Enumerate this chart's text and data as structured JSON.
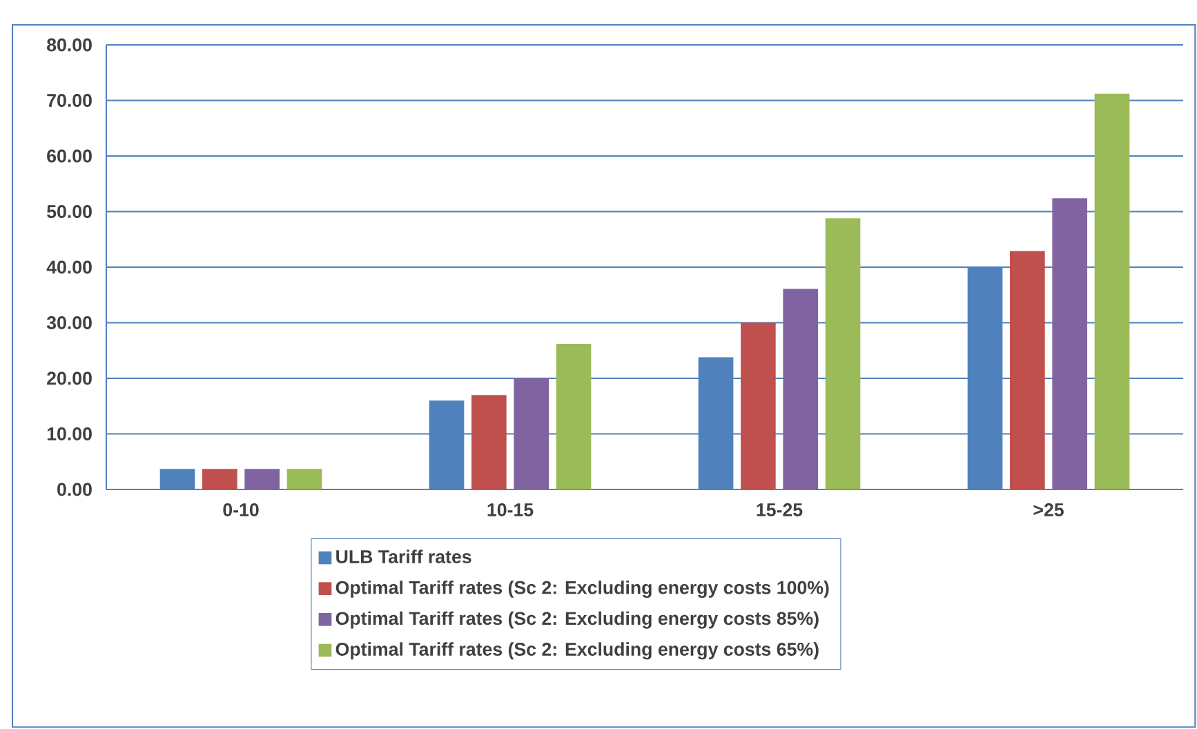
{
  "chart_data": {
    "type": "bar",
    "categories": [
      "0-10",
      "10-15",
      "15-25",
      ">25"
    ],
    "series": [
      {
        "name": "ULB Tariff rates",
        "color": "#4f81bd",
        "values": [
          3.7,
          16,
          23.8,
          40
        ]
      },
      {
        "name": "Optimal Tariff rates (Sc 2: Excluding energy costs 100%)",
        "color": "#c0504d",
        "values": [
          3.7,
          17,
          30,
          42.9
        ]
      },
      {
        "name": "Optimal Tariff rates (Sc 2: Excluding energy costs 85%)",
        "color": "#8064a2",
        "values": [
          3.7,
          20,
          36.1,
          52.4
        ]
      },
      {
        "name": "Optimal Tariff rates (Sc 2: Excluding energy costs 65%)",
        "color": "#9bbb59",
        "values": [
          3.7,
          26.2,
          48.8,
          71.2
        ]
      }
    ],
    "ylim": [
      0,
      80
    ],
    "yticks": [
      {
        "value": 0,
        "label": "0.00"
      },
      {
        "value": 10,
        "label": "10.00"
      },
      {
        "value": 20,
        "label": "20.00"
      },
      {
        "value": 30,
        "label": "30.00"
      },
      {
        "value": 40,
        "label": "40.00"
      },
      {
        "value": 50,
        "label": "50.00"
      },
      {
        "value": 60,
        "label": "60.00"
      },
      {
        "value": 70,
        "label": "70.00"
      },
      {
        "value": 80,
        "label": "80.00"
      }
    ],
    "grid": "y",
    "legend": "bottom"
  }
}
